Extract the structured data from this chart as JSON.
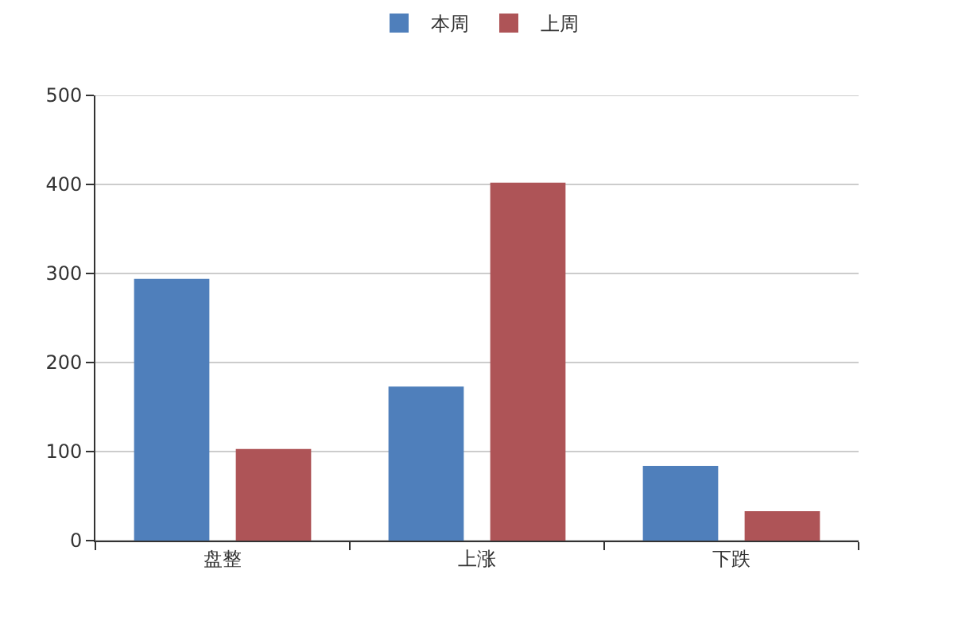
{
  "chart_data": {
    "type": "bar",
    "categories": [
      "盘整",
      "上涨",
      "下跌"
    ],
    "series": [
      {
        "name": "本周",
        "color": "#4f7fbb",
        "values": [
          294,
          173,
          84
        ]
      },
      {
        "name": "上周",
        "color": "#ae5457",
        "values": [
          103,
          402,
          33
        ]
      }
    ],
    "ylim": [
      0,
      500
    ],
    "yticks": [
      0,
      100,
      200,
      300,
      400,
      500
    ],
    "grid": "y",
    "legend": "top"
  }
}
